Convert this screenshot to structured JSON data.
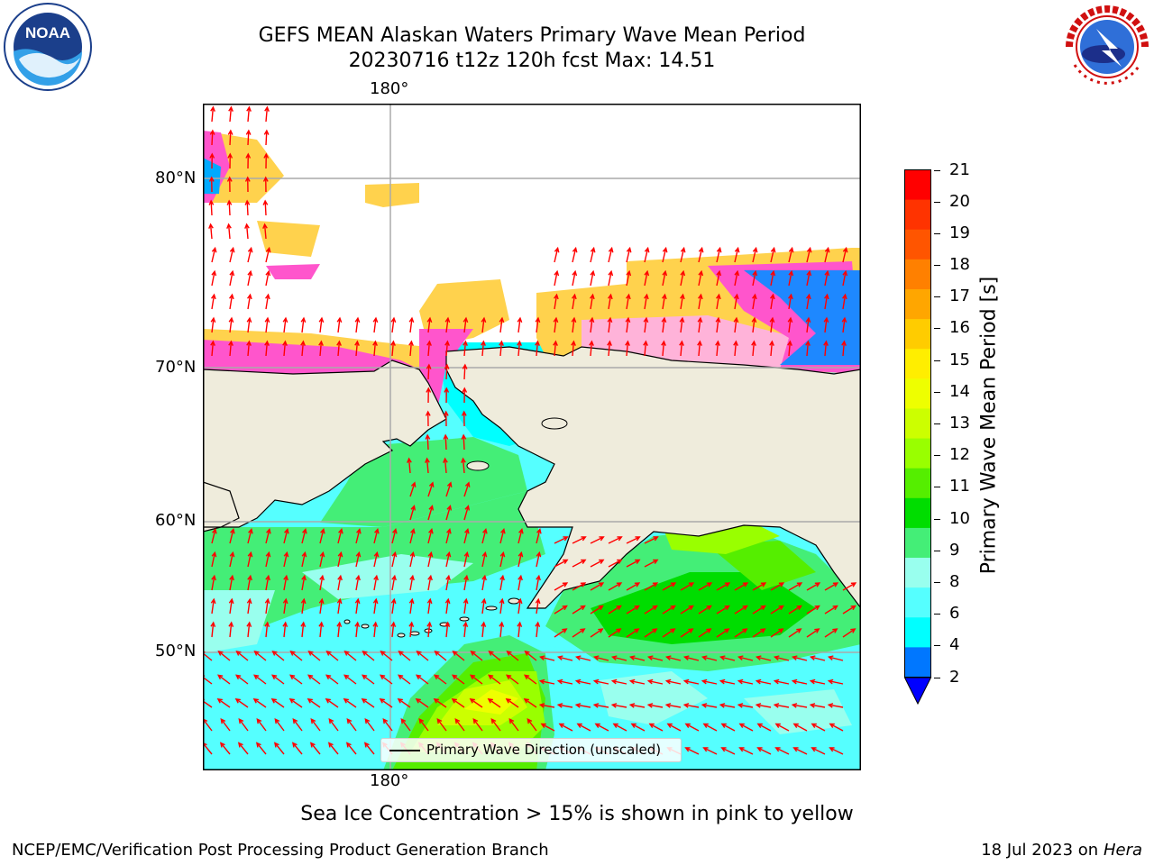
{
  "title": {
    "line1": "GEFS MEAN Alaskan Waters Primary Wave Mean Period",
    "line2": "20230716 t12z 120h fcst   Max: 14.51"
  },
  "logos": {
    "left": {
      "name": "NOAA",
      "icon": "noaa-logo-icon",
      "text": "NOAA"
    },
    "right": {
      "name": "NATIONAL WEATHER SERVICE",
      "icon": "nws-logo-icon"
    }
  },
  "map": {
    "lon_top_label": "180°",
    "lon_bottom_label": "180°",
    "lat_labels": [
      "80°N",
      "70°N",
      "60°N",
      "50°N"
    ],
    "colors": {
      "land": "#efecdc",
      "ice": [
        "#ff33cc",
        "#ffb3d9",
        "#ffd24d",
        "#ffee55"
      ],
      "vectors": "#ff0000",
      "grid": "#aaaaaa"
    }
  },
  "legend": {
    "label": "Primary Wave Direction (unscaled)"
  },
  "colorbar": {
    "title": "Primary Wave Mean Period [s]",
    "ticks": [
      "21",
      "20",
      "19",
      "18",
      "17",
      "16",
      "15",
      "14",
      "13",
      "12",
      "11",
      "10",
      "9",
      "8",
      "6",
      "4",
      "2"
    ],
    "colors": [
      "#ff0000",
      "#ff3300",
      "#ff5500",
      "#ff8000",
      "#ffa600",
      "#ffcc00",
      "#ffee00",
      "#eeff00",
      "#ccff00",
      "#99ff00",
      "#55ee00",
      "#00dd00",
      "#44ee77",
      "#99ffee",
      "#55ffff",
      "#00ffff",
      "#0077ff"
    ],
    "under_color": "#0000ff"
  },
  "annotation": "Sea Ice Concentration > 15% is shown in pink to yellow",
  "footer": {
    "left": "NCEP/EMC/Verification Post Processing Product Generation Branch",
    "date": "18 Jul 2023 on ",
    "host": "Hera"
  }
}
